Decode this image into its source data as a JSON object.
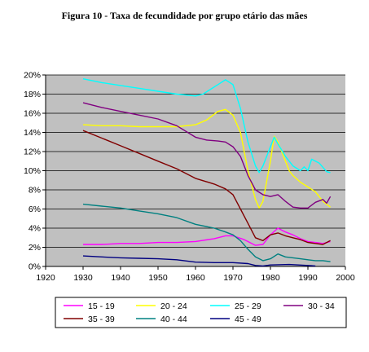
{
  "title": "Figura 10 - Taxa de fecundidade por grupo etário das mães",
  "chart_data": {
    "type": "line",
    "xlim": [
      1920,
      2000
    ],
    "ylim": [
      0,
      20
    ],
    "x_ticks": [
      1920,
      1930,
      1940,
      1950,
      1960,
      1970,
      1980,
      1990,
      2000
    ],
    "y_ticks": [
      0,
      2,
      4,
      6,
      8,
      10,
      12,
      14,
      16,
      18,
      20
    ],
    "y_tick_labels": [
      "0%",
      "2%",
      "4%",
      "6%",
      "8%",
      "10%",
      "12%",
      "14%",
      "16%",
      "18%",
      "20%"
    ],
    "grid": "horizontal",
    "plot_background": "#c0c0c0",
    "legend_position": "bottom",
    "series": [
      {
        "name": "15 - 19",
        "color": "#ff00ff",
        "points": [
          [
            1930,
            2.3
          ],
          [
            1935,
            2.3
          ],
          [
            1940,
            2.4
          ],
          [
            1945,
            2.4
          ],
          [
            1950,
            2.5
          ],
          [
            1955,
            2.5
          ],
          [
            1960,
            2.6
          ],
          [
            1965,
            2.9
          ],
          [
            1968,
            3.2
          ],
          [
            1970,
            3.2
          ],
          [
            1973,
            2.8
          ],
          [
            1976,
            2.2
          ],
          [
            1978,
            2.3
          ],
          [
            1980,
            3.3
          ],
          [
            1982,
            4.0
          ],
          [
            1984,
            3.6
          ],
          [
            1986,
            3.3
          ],
          [
            1988,
            2.9
          ],
          [
            1990,
            2.6
          ],
          [
            1992,
            2.5
          ],
          [
            1994,
            2.4
          ],
          [
            1996,
            2.6
          ]
        ]
      },
      {
        "name": "20 - 24",
        "color": "#ffff00",
        "points": [
          [
            1930,
            14.8
          ],
          [
            1935,
            14.7
          ],
          [
            1940,
            14.7
          ],
          [
            1945,
            14.6
          ],
          [
            1950,
            14.6
          ],
          [
            1955,
            14.6
          ],
          [
            1960,
            14.8
          ],
          [
            1963,
            15.3
          ],
          [
            1966,
            16.2
          ],
          [
            1968,
            16.4
          ],
          [
            1970,
            15.8
          ],
          [
            1972,
            14.0
          ],
          [
            1974,
            10.0
          ],
          [
            1976,
            7.0
          ],
          [
            1977,
            6.1
          ],
          [
            1978,
            6.8
          ],
          [
            1980,
            11.0
          ],
          [
            1981,
            13.6
          ],
          [
            1982,
            13.0
          ],
          [
            1983,
            12.0
          ],
          [
            1984,
            11.0
          ],
          [
            1985,
            10.0
          ],
          [
            1986,
            9.5
          ],
          [
            1988,
            8.8
          ],
          [
            1990,
            8.3
          ],
          [
            1992,
            7.8
          ],
          [
            1994,
            6.8
          ],
          [
            1996,
            6.2
          ]
        ]
      },
      {
        "name": "25 - 29",
        "color": "#00ffff",
        "points": [
          [
            1930,
            19.6
          ],
          [
            1935,
            19.2
          ],
          [
            1940,
            18.9
          ],
          [
            1945,
            18.6
          ],
          [
            1950,
            18.3
          ],
          [
            1955,
            18.0
          ],
          [
            1960,
            17.8
          ],
          [
            1962,
            18.0
          ],
          [
            1964,
            18.5
          ],
          [
            1966,
            19.0
          ],
          [
            1968,
            19.5
          ],
          [
            1970,
            19.0
          ],
          [
            1972,
            16.5
          ],
          [
            1974,
            13.0
          ],
          [
            1976,
            10.5
          ],
          [
            1977,
            9.8
          ],
          [
            1978,
            10.5
          ],
          [
            1980,
            12.5
          ],
          [
            1981,
            13.5
          ],
          [
            1982,
            12.8
          ],
          [
            1984,
            11.5
          ],
          [
            1986,
            10.5
          ],
          [
            1988,
            10.0
          ],
          [
            1989,
            10.4
          ],
          [
            1990,
            10.0
          ],
          [
            1991,
            11.2
          ],
          [
            1993,
            10.8
          ],
          [
            1995,
            9.9
          ],
          [
            1996,
            9.8
          ]
        ]
      },
      {
        "name": "30 - 34",
        "color": "#800080",
        "points": [
          [
            1930,
            17.1
          ],
          [
            1935,
            16.6
          ],
          [
            1940,
            16.2
          ],
          [
            1945,
            15.8
          ],
          [
            1950,
            15.4
          ],
          [
            1955,
            14.7
          ],
          [
            1960,
            13.5
          ],
          [
            1963,
            13.2
          ],
          [
            1966,
            13.1
          ],
          [
            1968,
            13.0
          ],
          [
            1970,
            12.5
          ],
          [
            1972,
            11.5
          ],
          [
            1974,
            9.5
          ],
          [
            1976,
            8.0
          ],
          [
            1978,
            7.5
          ],
          [
            1980,
            7.3
          ],
          [
            1982,
            7.5
          ],
          [
            1984,
            6.8
          ],
          [
            1986,
            6.2
          ],
          [
            1988,
            6.1
          ],
          [
            1990,
            6.1
          ],
          [
            1992,
            6.7
          ],
          [
            1994,
            7.0
          ],
          [
            1995,
            6.6
          ],
          [
            1996,
            7.3
          ]
        ]
      },
      {
        "name": "35 - 39",
        "color": "#800000",
        "points": [
          [
            1930,
            14.2
          ],
          [
            1935,
            13.4
          ],
          [
            1940,
            12.6
          ],
          [
            1945,
            11.8
          ],
          [
            1950,
            11.0
          ],
          [
            1955,
            10.2
          ],
          [
            1960,
            9.2
          ],
          [
            1965,
            8.6
          ],
          [
            1968,
            8.1
          ],
          [
            1970,
            7.5
          ],
          [
            1972,
            6.0
          ],
          [
            1974,
            4.5
          ],
          [
            1976,
            3.0
          ],
          [
            1978,
            2.7
          ],
          [
            1980,
            3.3
          ],
          [
            1982,
            3.5
          ],
          [
            1984,
            3.2
          ],
          [
            1986,
            3.0
          ],
          [
            1988,
            2.8
          ],
          [
            1990,
            2.5
          ],
          [
            1992,
            2.4
          ],
          [
            1994,
            2.3
          ],
          [
            1996,
            2.7
          ]
        ]
      },
      {
        "name": "40 - 44",
        "color": "#008080",
        "points": [
          [
            1930,
            6.5
          ],
          [
            1935,
            6.3
          ],
          [
            1940,
            6.1
          ],
          [
            1945,
            5.8
          ],
          [
            1950,
            5.5
          ],
          [
            1955,
            5.1
          ],
          [
            1960,
            4.4
          ],
          [
            1965,
            4.0
          ],
          [
            1968,
            3.6
          ],
          [
            1970,
            3.3
          ],
          [
            1972,
            2.7
          ],
          [
            1974,
            1.8
          ],
          [
            1976,
            1.0
          ],
          [
            1978,
            0.6
          ],
          [
            1980,
            0.8
          ],
          [
            1982,
            1.3
          ],
          [
            1984,
            1.0
          ],
          [
            1986,
            0.9
          ],
          [
            1988,
            0.8
          ],
          [
            1990,
            0.7
          ],
          [
            1992,
            0.6
          ],
          [
            1994,
            0.6
          ],
          [
            1996,
            0.5
          ]
        ]
      },
      {
        "name": "45 - 49",
        "color": "#000080",
        "points": [
          [
            1930,
            1.1
          ],
          [
            1935,
            1.0
          ],
          [
            1940,
            0.9
          ],
          [
            1945,
            0.85
          ],
          [
            1950,
            0.8
          ],
          [
            1955,
            0.7
          ],
          [
            1960,
            0.45
          ],
          [
            1965,
            0.4
          ],
          [
            1970,
            0.4
          ],
          [
            1974,
            0.3
          ],
          [
            1976,
            0.1
          ],
          [
            1978,
            0.05
          ],
          [
            1980,
            0.15
          ],
          [
            1985,
            0.2
          ],
          [
            1990,
            0.1
          ],
          [
            1992,
            0.05
          ]
        ]
      }
    ]
  }
}
